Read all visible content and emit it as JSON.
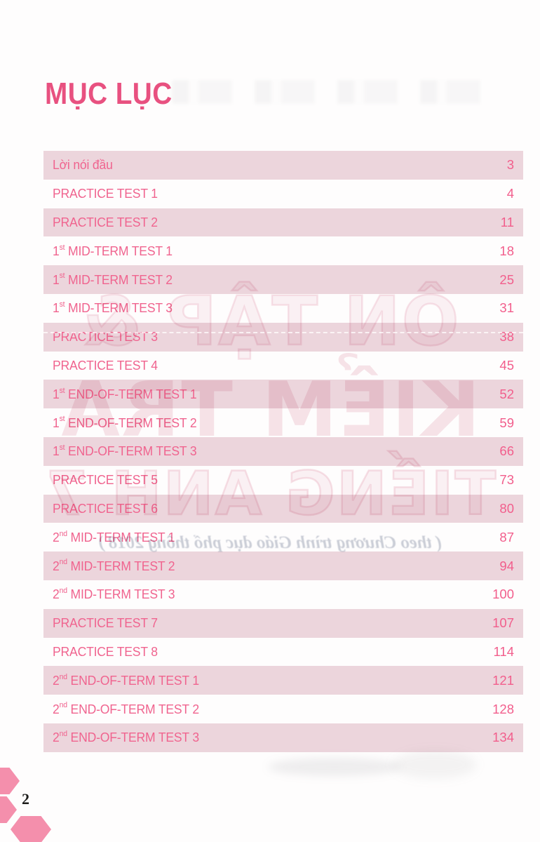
{
  "page": {
    "title": "MỤC LỤC",
    "page_number": "2"
  },
  "toc": {
    "items": [
      {
        "pre": "Lời nói đầu",
        "sup": "",
        "post": "",
        "page": "3"
      },
      {
        "pre": "PRACTICE TEST 1",
        "sup": "",
        "post": "",
        "page": "4"
      },
      {
        "pre": "PRACTICE TEST 2",
        "sup": "",
        "post": "",
        "page": "11"
      },
      {
        "pre": "1",
        "sup": "st",
        "post": " MID-TERM TEST 1",
        "page": "18"
      },
      {
        "pre": "1",
        "sup": "st",
        "post": " MID-TERM TEST 2",
        "page": "25"
      },
      {
        "pre": "1",
        "sup": "st",
        "post": " MID-TERM TEST 3",
        "page": "31"
      },
      {
        "pre": "PRACTICE TEST 3",
        "sup": "",
        "post": "",
        "page": "38"
      },
      {
        "pre": "PRACTICE TEST 4",
        "sup": "",
        "post": "",
        "page": "45"
      },
      {
        "pre": "1",
        "sup": "st",
        "post": " END-OF-TERM TEST 1",
        "page": "52"
      },
      {
        "pre": "1",
        "sup": "st",
        "post": " END-OF-TERM TEST 2",
        "page": "59"
      },
      {
        "pre": "1",
        "sup": "st",
        "post": " END-OF-TERM TEST 3",
        "page": "66"
      },
      {
        "pre": "PRACTICE TEST 5",
        "sup": "",
        "post": "",
        "page": "73"
      },
      {
        "pre": "PRACTICE TEST 6",
        "sup": "",
        "post": "",
        "page": "80"
      },
      {
        "pre": "2",
        "sup": "nd",
        "post": " MID-TERM TEST 1",
        "page": "87"
      },
      {
        "pre": "2",
        "sup": "nd",
        "post": " MID-TERM TEST 2",
        "page": "94"
      },
      {
        "pre": "2",
        "sup": "nd",
        "post": " MID-TERM TEST 3",
        "page": "100"
      },
      {
        "pre": "PRACTICE TEST 7",
        "sup": "",
        "post": "",
        "page": "107"
      },
      {
        "pre": "PRACTICE TEST 8",
        "sup": "",
        "post": "",
        "page": "114"
      },
      {
        "pre": "2",
        "sup": "nd",
        "post": " END-OF-TERM TEST 1",
        "page": "121"
      },
      {
        "pre": "2",
        "sup": "nd",
        "post": " END-OF-TERM TEST 2",
        "page": "128"
      },
      {
        "pre": "2",
        "sup": "nd",
        "post": " END-OF-TERM TEST 3",
        "page": "134"
      }
    ]
  },
  "watermark": {
    "line1": "ÔN TẬP &",
    "line2": "KIỂM TRA",
    "line3": "TIẾNG ANH 7",
    "subtitle": "( theo Chương trình Giáo dục phổ thông 2018 )"
  },
  "colors": {
    "title_pink": "#e85180",
    "row_text_pink": "#f0648f",
    "number_pink": "#f25e8c",
    "band_pink": "#ecd5dc",
    "hexagon_pink": "#f48fac",
    "page_number_black": "#1d1d1b"
  }
}
